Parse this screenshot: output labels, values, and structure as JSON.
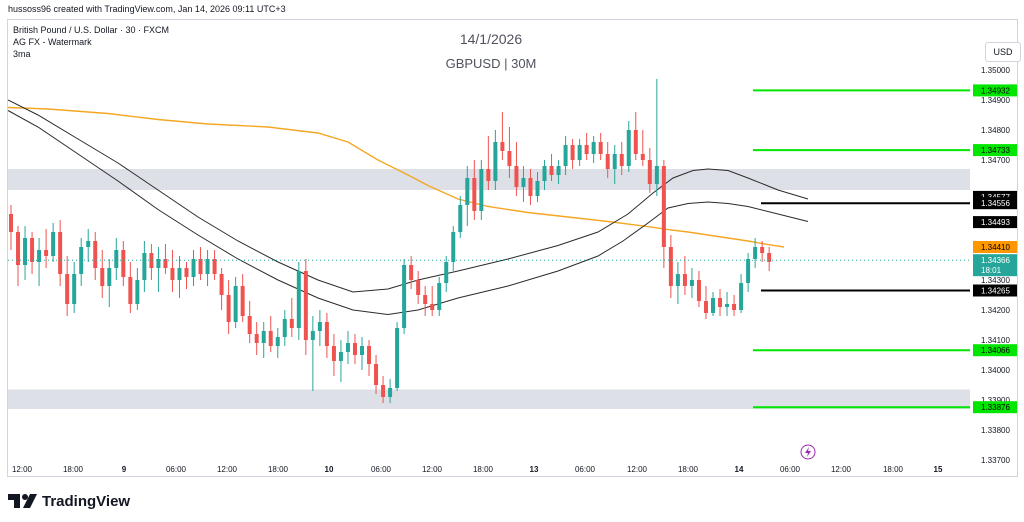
{
  "header": {
    "created_by": "hussoss96 created with TradingView.com, Jan 14, 2026 09:11 UTC+3"
  },
  "legend": {
    "symbol": "British Pound / U.S. Dollar · 30 · FXCM",
    "line2": "AG FX - Watermark",
    "line3": "3ma"
  },
  "watermark": {
    "date": "14/1/2026",
    "pair": "GBPUSD | 30M"
  },
  "currency_button": "USD",
  "logo_text": "TradingView",
  "colors": {
    "up": "#26a69a",
    "down": "#ef5350",
    "ma_long": "#f5a623",
    "ma": "#2b2b2b",
    "green_level": "#00e600",
    "black_level": "#000000",
    "zone": "#dde0e6",
    "price_line": "#26a69a"
  },
  "chart_data": {
    "type": "candlestick",
    "ylim": [
      1.337,
      1.351
    ],
    "y_ticks": [
      "1.35000",
      "1.34900",
      "1.34800",
      "1.34700",
      "1.34300",
      "1.34200",
      "1.34100",
      "1.34000",
      "1.33900",
      "1.33800",
      "1.33700"
    ],
    "x_ticks": [
      "12:00",
      "18:00",
      "9",
      "06:00",
      "12:00",
      "18:00",
      "10",
      "06:00",
      "12:00",
      "18:00",
      "13",
      "06:00",
      "12:00",
      "18:00",
      "14",
      "06:00",
      "12:00",
      "18:00",
      "15"
    ],
    "bold_x_ticks": [
      "9",
      "10",
      "13",
      "14",
      "15"
    ],
    "zones": [
      {
        "name": "resistance-zone",
        "from": 1.346,
        "to": 1.3467
      },
      {
        "name": "support-zone",
        "from": 1.3387,
        "to": 1.33935
      }
    ],
    "levels": [
      {
        "value": 1.34932,
        "label": "1.34932",
        "color": "green"
      },
      {
        "value": 1.34733,
        "label": "1.34733",
        "color": "green"
      },
      {
        "value": 1.34577,
        "label": "1.34577",
        "color": "black",
        "line": false
      },
      {
        "value": 1.34556,
        "label": "1.34556",
        "color": "black",
        "line": true
      },
      {
        "value": 1.34493,
        "label": "1.34493",
        "color": "black",
        "line": false
      },
      {
        "value": 1.34265,
        "label": "1.34265",
        "color": "black",
        "line": true
      },
      {
        "value": 1.34066,
        "label": "1.34066",
        "color": "green"
      },
      {
        "value": 1.33876,
        "label": "1.33876",
        "color": "green"
      }
    ],
    "ma_label": {
      "value": 1.3441,
      "label": "1.34410"
    },
    "last_price": {
      "value": 1.34366,
      "label": "1.34366",
      "countdown": "18:01"
    },
    "series": [
      {
        "name": "ma-orange",
        "points": [
          [
            0,
            1.34875
          ],
          [
            40,
            1.3487
          ],
          [
            100,
            1.34855
          ],
          [
            150,
            1.34835
          ],
          [
            200,
            1.3482
          ],
          [
            260,
            1.3481
          ],
          [
            310,
            1.3479
          ],
          [
            340,
            1.3476
          ],
          [
            370,
            1.347
          ],
          [
            400,
            1.3465
          ],
          [
            420,
            1.34615
          ],
          [
            450,
            1.3457
          ],
          [
            480,
            1.34545
          ],
          [
            520,
            1.34525
          ],
          [
            560,
            1.3451
          ],
          [
            600,
            1.34495
          ],
          [
            640,
            1.34478
          ],
          [
            660,
            1.34468
          ],
          [
            680,
            1.3446
          ],
          [
            700,
            1.3445
          ],
          [
            720,
            1.3444
          ],
          [
            740,
            1.3443
          ],
          [
            760,
            1.34418
          ],
          [
            776,
            1.3441
          ]
        ]
      },
      {
        "name": "ma-upper",
        "points": [
          [
            0,
            1.349
          ],
          [
            30,
            1.3485
          ],
          [
            70,
            1.3477
          ],
          [
            110,
            1.3469
          ],
          [
            150,
            1.346
          ],
          [
            190,
            1.3451
          ],
          [
            230,
            1.3443
          ],
          [
            270,
            1.3436
          ],
          [
            310,
            1.343
          ],
          [
            345,
            1.3426
          ],
          [
            380,
            1.3427
          ],
          [
            410,
            1.343
          ],
          [
            450,
            1.3433
          ],
          [
            500,
            1.3437
          ],
          [
            550,
            1.34415
          ],
          [
            590,
            1.3446
          ],
          [
            620,
            1.3452
          ],
          [
            645,
            1.3459
          ],
          [
            665,
            1.3464
          ],
          [
            685,
            1.34665
          ],
          [
            700,
            1.3467
          ],
          [
            720,
            1.34665
          ],
          [
            740,
            1.3464
          ],
          [
            770,
            1.346
          ],
          [
            800,
            1.3457
          ]
        ]
      },
      {
        "name": "ma-lower",
        "points": [
          [
            0,
            1.34865
          ],
          [
            30,
            1.3481
          ],
          [
            70,
            1.3472
          ],
          [
            110,
            1.3463
          ],
          [
            150,
            1.34535
          ],
          [
            190,
            1.3445
          ],
          [
            230,
            1.3437
          ],
          [
            270,
            1.343
          ],
          [
            310,
            1.3424
          ],
          [
            345,
            1.342
          ],
          [
            380,
            1.34185
          ],
          [
            410,
            1.342
          ],
          [
            450,
            1.3424
          ],
          [
            500,
            1.3428
          ],
          [
            550,
            1.3433
          ],
          [
            590,
            1.3438
          ],
          [
            615,
            1.3443
          ],
          [
            640,
            1.3449
          ],
          [
            660,
            1.3454
          ],
          [
            680,
            1.34555
          ],
          [
            700,
            1.3456
          ],
          [
            720,
            1.34555
          ],
          [
            740,
            1.34545
          ],
          [
            770,
            1.3452
          ],
          [
            800,
            1.34495
          ]
        ]
      }
    ],
    "candles_ohlc": [
      [
        1.3452,
        1.3455,
        1.344,
        1.3446
      ],
      [
        1.3446,
        1.3448,
        1.3428,
        1.3435
      ],
      [
        1.3435,
        1.3448,
        1.343,
        1.3444
      ],
      [
        1.3444,
        1.3446,
        1.3432,
        1.3436
      ],
      [
        1.3436,
        1.3444,
        1.3428,
        1.344
      ],
      [
        1.344,
        1.3447,
        1.3434,
        1.3438
      ],
      [
        1.3438,
        1.3449,
        1.3436,
        1.3446
      ],
      [
        1.3446,
        1.345,
        1.3428,
        1.3432
      ],
      [
        1.3432,
        1.3438,
        1.3418,
        1.3422
      ],
      [
        1.3422,
        1.3436,
        1.3419,
        1.3432
      ],
      [
        1.3432,
        1.3444,
        1.3428,
        1.3441
      ],
      [
        1.3441,
        1.3447,
        1.3436,
        1.3443
      ],
      [
        1.3443,
        1.3446,
        1.343,
        1.3434
      ],
      [
        1.3434,
        1.344,
        1.3424,
        1.3428
      ],
      [
        1.3428,
        1.3437,
        1.3421,
        1.3434
      ],
      [
        1.3434,
        1.3444,
        1.343,
        1.344
      ],
      [
        1.344,
        1.3443,
        1.3428,
        1.3431
      ],
      [
        1.3431,
        1.3436,
        1.3419,
        1.3422
      ],
      [
        1.3422,
        1.3434,
        1.342,
        1.343
      ],
      [
        1.343,
        1.3443,
        1.3426,
        1.3439
      ],
      [
        1.3439,
        1.3442,
        1.343,
        1.3434
      ],
      [
        1.3434,
        1.3441,
        1.3426,
        1.3437
      ],
      [
        1.3437,
        1.3442,
        1.3432,
        1.3434
      ],
      [
        1.3434,
        1.344,
        1.3426,
        1.343
      ],
      [
        1.343,
        1.3438,
        1.3424,
        1.3434
      ],
      [
        1.3434,
        1.3436,
        1.3427,
        1.3431
      ],
      [
        1.3431,
        1.344,
        1.3428,
        1.3437
      ],
      [
        1.3437,
        1.3441,
        1.343,
        1.3432
      ],
      [
        1.3432,
        1.344,
        1.3428,
        1.3437
      ],
      [
        1.3437,
        1.344,
        1.343,
        1.3432
      ],
      [
        1.3432,
        1.3434,
        1.342,
        1.3425
      ],
      [
        1.3425,
        1.343,
        1.3412,
        1.3416
      ],
      [
        1.3416,
        1.3431,
        1.3414,
        1.3428
      ],
      [
        1.3428,
        1.3432,
        1.3416,
        1.3418
      ],
      [
        1.3418,
        1.3423,
        1.3409,
        1.3412
      ],
      [
        1.3412,
        1.3416,
        1.3405,
        1.3409
      ],
      [
        1.3409,
        1.3416,
        1.3404,
        1.3413
      ],
      [
        1.3413,
        1.3418,
        1.3406,
        1.3408
      ],
      [
        1.3408,
        1.3414,
        1.3404,
        1.3411
      ],
      [
        1.3411,
        1.342,
        1.3408,
        1.3417
      ],
      [
        1.3417,
        1.3424,
        1.3411,
        1.3414
      ],
      [
        1.3414,
        1.3436,
        1.341,
        1.3433
      ],
      [
        1.3433,
        1.3437,
        1.3405,
        1.341
      ],
      [
        1.341,
        1.3418,
        1.3393,
        1.3413
      ],
      [
        1.3413,
        1.342,
        1.3408,
        1.3416
      ],
      [
        1.3416,
        1.3419,
        1.3404,
        1.3408
      ],
      [
        1.3408,
        1.3412,
        1.3398,
        1.3403
      ],
      [
        1.3403,
        1.341,
        1.3396,
        1.3406
      ],
      [
        1.3406,
        1.3413,
        1.3402,
        1.3409
      ],
      [
        1.3409,
        1.3412,
        1.3402,
        1.3405
      ],
      [
        1.3405,
        1.3411,
        1.34,
        1.3408
      ],
      [
        1.3408,
        1.341,
        1.3398,
        1.3402
      ],
      [
        1.3402,
        1.3405,
        1.3392,
        1.3395
      ],
      [
        1.3395,
        1.3398,
        1.3389,
        1.3391
      ],
      [
        1.3391,
        1.3397,
        1.3389,
        1.3394
      ],
      [
        1.3394,
        1.3416,
        1.3393,
        1.3414
      ],
      [
        1.3414,
        1.3437,
        1.3412,
        1.3435
      ],
      [
        1.3435,
        1.3438,
        1.3427,
        1.343
      ],
      [
        1.343,
        1.3433,
        1.3422,
        1.3425
      ],
      [
        1.3425,
        1.3428,
        1.3418,
        1.3422
      ],
      [
        1.3422,
        1.3428,
        1.3418,
        1.342
      ],
      [
        1.342,
        1.3431,
        1.3418,
        1.3429
      ],
      [
        1.3429,
        1.3438,
        1.3426,
        1.3436
      ],
      [
        1.3436,
        1.3448,
        1.3433,
        1.3446
      ],
      [
        1.3446,
        1.3458,
        1.3444,
        1.3455
      ],
      [
        1.3455,
        1.3468,
        1.3448,
        1.3464
      ],
      [
        1.3464,
        1.347,
        1.345,
        1.3453
      ],
      [
        1.3453,
        1.347,
        1.345,
        1.3467
      ],
      [
        1.3467,
        1.3478,
        1.346,
        1.3463
      ],
      [
        1.3463,
        1.348,
        1.346,
        1.3476
      ],
      [
        1.3476,
        1.3486,
        1.347,
        1.3473
      ],
      [
        1.3473,
        1.3481,
        1.3464,
        1.3468
      ],
      [
        1.3468,
        1.3476,
        1.3458,
        1.3461
      ],
      [
        1.3461,
        1.3468,
        1.3456,
        1.3464
      ],
      [
        1.3464,
        1.3467,
        1.3455,
        1.3458
      ],
      [
        1.3458,
        1.3466,
        1.3456,
        1.3463
      ],
      [
        1.3463,
        1.347,
        1.346,
        1.3468
      ],
      [
        1.3468,
        1.3472,
        1.3463,
        1.3465
      ],
      [
        1.3465,
        1.347,
        1.3462,
        1.3468
      ],
      [
        1.3468,
        1.3478,
        1.3465,
        1.3475
      ],
      [
        1.3475,
        1.3477,
        1.3467,
        1.347
      ],
      [
        1.347,
        1.3477,
        1.3468,
        1.3475
      ],
      [
        1.3475,
        1.3479,
        1.347,
        1.3472
      ],
      [
        1.3472,
        1.3478,
        1.3469,
        1.3476
      ],
      [
        1.3476,
        1.3479,
        1.347,
        1.3472
      ],
      [
        1.3472,
        1.3476,
        1.3464,
        1.3467
      ],
      [
        1.3467,
        1.3475,
        1.3462,
        1.3472
      ],
      [
        1.3472,
        1.3476,
        1.3465,
        1.3468
      ],
      [
        1.3468,
        1.3483,
        1.3466,
        1.348
      ],
      [
        1.348,
        1.3486,
        1.347,
        1.3472
      ],
      [
        1.3472,
        1.348,
        1.3468,
        1.347
      ],
      [
        1.347,
        1.3474,
        1.3459,
        1.3462
      ],
      [
        1.3462,
        1.3497,
        1.3458,
        1.3468
      ],
      [
        1.3468,
        1.347,
        1.3434,
        1.3441
      ],
      [
        1.3441,
        1.3445,
        1.3424,
        1.3428
      ],
      [
        1.3428,
        1.3436,
        1.3422,
        1.3432
      ],
      [
        1.3432,
        1.3438,
        1.3425,
        1.3428
      ],
      [
        1.3428,
        1.3434,
        1.3424,
        1.343
      ],
      [
        1.343,
        1.3433,
        1.3421,
        1.3423
      ],
      [
        1.3423,
        1.3428,
        1.3417,
        1.3419
      ],
      [
        1.3419,
        1.3426,
        1.3418,
        1.3424
      ],
      [
        1.3424,
        1.3427,
        1.3418,
        1.3421
      ],
      [
        1.3421,
        1.3426,
        1.3418,
        1.3422
      ],
      [
        1.3422,
        1.3425,
        1.3418,
        1.342
      ],
      [
        1.342,
        1.3432,
        1.3419,
        1.3429
      ],
      [
        1.3429,
        1.3439,
        1.3426,
        1.3437
      ],
      [
        1.3437,
        1.3444,
        1.3434,
        1.3441
      ],
      [
        1.3441,
        1.3443,
        1.3436,
        1.3439
      ],
      [
        1.3439,
        1.3441,
        1.3433,
        1.3436
      ]
    ]
  }
}
